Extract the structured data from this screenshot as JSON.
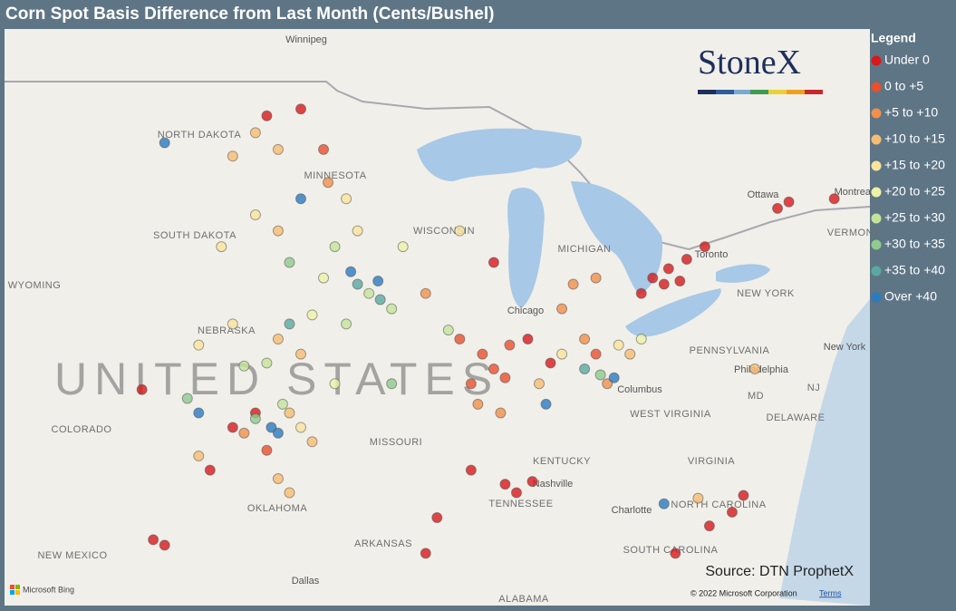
{
  "header": {
    "title": "Corn Spot Basis Difference from Last Month (Cents/Bushel)"
  },
  "legend": {
    "title": "Legend",
    "items": [
      {
        "label": "Under 0",
        "color": "#d7191c"
      },
      {
        "label": "0 to +5",
        "color": "#e8502e"
      },
      {
        "label": "+5 to +10",
        "color": "#f0904a"
      },
      {
        "label": "+10 to +15",
        "color": "#f7bd72"
      },
      {
        "label": "+15 to +20",
        "color": "#fbe39c"
      },
      {
        "label": "+20 to +25",
        "color": "#eef2a8"
      },
      {
        "label": "+25 to +30",
        "color": "#c4e39a"
      },
      {
        "label": "+30 to +35",
        "color": "#8fcb8e"
      },
      {
        "label": "+35 to +40",
        "color": "#5aa9a0"
      },
      {
        "label": "Over +40",
        "color": "#2b7bc0"
      }
    ]
  },
  "logo": {
    "text": "StoneX"
  },
  "map": {
    "labels": [
      "Winnipeg",
      "NORTH DAKOTA",
      "MINNESOTA",
      "SOUTH DAKOTA",
      "WYOMING",
      "NEBRASKA",
      "UNITED STATES",
      "COLORADO",
      "MISSOURI",
      "OKLAHOMA",
      "NEW MEXICO",
      "ARKANSAS",
      "Dallas",
      "ALABAMA",
      "TENNESSEE",
      "Nashville",
      "KENTUCKY",
      "WEST VIRGINIA",
      "VIRGINIA",
      "NORTH CAROLINA",
      "SOUTH CAROLINA",
      "Charlotte",
      "Columbus",
      "Chicago",
      "WISCONSIN",
      "MICHIGAN",
      "PENNSYLVANIA",
      "Philadelphia",
      "NEW YORK",
      "New York",
      "NJ",
      "MD",
      "DELAWARE",
      "Ottawa",
      "Montreal",
      "VERMONT",
      "Toronto"
    ],
    "points": [
      [
        -81.5,
        43.0,
        0
      ],
      [
        -80.8,
        43.3,
        0
      ],
      [
        -80.0,
        43.6,
        0
      ],
      [
        -81.0,
        42.8,
        0
      ],
      [
        -79.2,
        44.0,
        0
      ],
      [
        -76.0,
        45.2,
        0
      ],
      [
        -75.5,
        45.4,
        0
      ],
      [
        -73.5,
        45.5,
        0
      ],
      [
        -82.0,
        42.5,
        0
      ],
      [
        -80.3,
        42.9,
        0
      ],
      [
        -88.0,
        36.0,
        0
      ],
      [
        -87.5,
        35.7,
        0
      ],
      [
        -86.8,
        36.1,
        0
      ],
      [
        -89.5,
        36.5,
        0
      ],
      [
        -77.5,
        35.6,
        0
      ],
      [
        -78.0,
        35.0,
        0
      ],
      [
        -79.0,
        34.5,
        0
      ],
      [
        -80.5,
        33.5,
        0
      ],
      [
        -91.0,
        34.8,
        0
      ],
      [
        -91.5,
        33.5,
        0
      ],
      [
        -87.0,
        41.0,
        0
      ],
      [
        -86.0,
        40.2,
        0
      ],
      [
        -88.5,
        43.5,
        0
      ],
      [
        -99.0,
        38.5,
        0
      ],
      [
        -100.0,
        38.0,
        0
      ],
      [
        -101.0,
        36.5,
        0
      ],
      [
        -97.0,
        48.2,
        0
      ],
      [
        -98.5,
        48.0,
        0
      ],
      [
        -103.5,
        34.0,
        0
      ],
      [
        -103.0,
        33.8,
        0
      ],
      [
        -104.0,
        39.3,
        0
      ],
      [
        -89.0,
        40.5,
        1
      ],
      [
        -88.5,
        40.0,
        1
      ],
      [
        -89.5,
        39.5,
        1
      ],
      [
        -88.0,
        39.7,
        1
      ],
      [
        -87.8,
        40.8,
        1
      ],
      [
        -90.0,
        41.0,
        1
      ],
      [
        -84.0,
        40.5,
        1
      ],
      [
        -96.0,
        47.0,
        1
      ],
      [
        -98.5,
        37.2,
        1
      ],
      [
        -84.5,
        41.0,
        2
      ],
      [
        -83.5,
        39.5,
        2
      ],
      [
        -85.0,
        42.8,
        2
      ],
      [
        -84.0,
        43.0,
        2
      ],
      [
        -85.5,
        42.0,
        2
      ],
      [
        -95.8,
        46.0,
        2
      ],
      [
        -99.5,
        37.8,
        2
      ],
      [
        -91.5,
        42.5,
        2
      ],
      [
        -89.2,
        38.8,
        2
      ],
      [
        -88.2,
        38.5,
        2
      ],
      [
        -99.0,
        47.5,
        3
      ],
      [
        -98.0,
        47.0,
        3
      ],
      [
        -100.0,
        46.8,
        3
      ],
      [
        -98.0,
        44.5,
        3
      ],
      [
        -98.0,
        41.0,
        3
      ],
      [
        -97.0,
        40.5,
        3
      ],
      [
        -97.5,
        38.5,
        3
      ],
      [
        -96.5,
        37.5,
        3
      ],
      [
        -98.0,
        36.2,
        3
      ],
      [
        -97.5,
        35.7,
        3
      ],
      [
        -86.5,
        39.5,
        3
      ],
      [
        -82.5,
        40.5,
        3
      ],
      [
        -77.0,
        40.0,
        3
      ],
      [
        -79.5,
        35.5,
        3
      ],
      [
        -101.5,
        37.0,
        3
      ],
      [
        -95.0,
        45.5,
        4
      ],
      [
        -94.5,
        44.5,
        4
      ],
      [
        -99.0,
        45.0,
        4
      ],
      [
        -100.5,
        44.0,
        4
      ],
      [
        -100.0,
        41.5,
        4
      ],
      [
        -101.5,
        40.8,
        4
      ],
      [
        -97.0,
        38.0,
        4
      ],
      [
        -83.0,
        40.8,
        4
      ],
      [
        -85.5,
        40.5,
        4
      ],
      [
        -90.0,
        44.5,
        4
      ],
      [
        -96.0,
        43.0,
        5
      ],
      [
        -92.5,
        44.0,
        5
      ],
      [
        -96.5,
        41.8,
        5
      ],
      [
        -82.0,
        41.0,
        5
      ],
      [
        -95.5,
        39.5,
        5
      ],
      [
        -94.0,
        42.5,
        6
      ],
      [
        -93.0,
        42.0,
        6
      ],
      [
        -95.0,
        41.5,
        6
      ],
      [
        -98.5,
        40.2,
        6
      ],
      [
        -99.5,
        40.1,
        6
      ],
      [
        -97.8,
        38.8,
        6
      ],
      [
        -95.5,
        44.0,
        6
      ],
      [
        -90.5,
        41.3,
        6
      ],
      [
        -99.0,
        38.3,
        7
      ],
      [
        -97.5,
        43.5,
        7
      ],
      [
        -83.8,
        39.8,
        7
      ],
      [
        -93.0,
        39.5,
        7
      ],
      [
        -102.0,
        39.0,
        7
      ],
      [
        -94.5,
        42.8,
        8
      ],
      [
        -93.5,
        42.3,
        8
      ],
      [
        -97.5,
        41.5,
        8
      ],
      [
        -84.5,
        40.0,
        8
      ],
      [
        -103.0,
        47.2,
        9
      ],
      [
        -98.3,
        38.0,
        9
      ],
      [
        -98.0,
        37.8,
        9
      ],
      [
        -94.8,
        43.2,
        9
      ],
      [
        -93.6,
        42.9,
        9
      ],
      [
        -97.0,
        45.5,
        9
      ],
      [
        -101.5,
        38.5,
        9
      ],
      [
        -83.2,
        39.7,
        9
      ],
      [
        -81.0,
        35.3,
        9
      ],
      [
        -86.2,
        38.8,
        9
      ]
    ]
  },
  "footer": {
    "source": "Source: DTN ProphetX",
    "bing": "Microsoft Bing",
    "copyright": "© 2022 Microsoft Corporation",
    "terms": "Terms"
  }
}
